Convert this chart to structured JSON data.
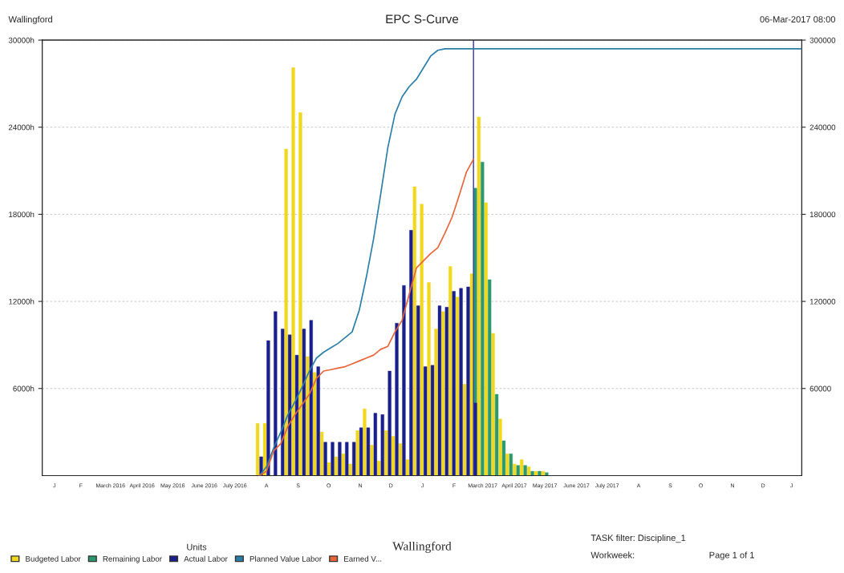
{
  "chart_data": {
    "type": "bar",
    "title": "EPC S-Curve",
    "subtitle": "Wallingford",
    "annotations": [
      "Wallingford",
      "06-Mar-2017 08:00",
      "TASK filter: Discipline_1",
      "Workweek:",
      "Page 1 of 1"
    ],
    "x": [
      "2016-08-08",
      "2016-08-15",
      "2016-08-22",
      "2016-08-29",
      "2016-09-05",
      "2016-09-12",
      "2016-09-19",
      "2016-09-26",
      "2016-10-03",
      "2016-10-10",
      "2016-10-17",
      "2016-10-24",
      "2016-10-31",
      "2016-11-07",
      "2016-11-14",
      "2016-11-21",
      "2016-11-28",
      "2016-12-05",
      "2016-12-12",
      "2016-12-19",
      "2016-12-26",
      "2017-01-02",
      "2017-01-09",
      "2017-01-16",
      "2017-01-23",
      "2017-01-30",
      "2017-02-06",
      "2017-02-13",
      "2017-02-20",
      "2017-02-27",
      "2017-03-06",
      "2017-03-13",
      "2017-03-20",
      "2017-03-27",
      "2017-04-03",
      "2017-04-10",
      "2017-04-17",
      "2017-04-24",
      "2017-05-01",
      "2017-05-08",
      "2017-05-15"
    ],
    "series": [
      {
        "name": "Budgeted Labor",
        "color": "#f2d81c",
        "values": [
          3600,
          3600,
          0,
          0,
          22500,
          28100,
          25000,
          8200,
          7100,
          3000,
          900,
          1300,
          1500,
          800,
          3100,
          4600,
          2100,
          1000,
          3100,
          2700,
          2200,
          1100,
          19900,
          18700,
          13300,
          10100,
          11300,
          14400,
          12300,
          6300,
          13900,
          24700,
          18800,
          9800,
          3900,
          1500,
          800,
          1100,
          600,
          300,
          300
        ]
      },
      {
        "name": "Remaining Labor",
        "color": "#2a9a6e",
        "values": [
          null,
          null,
          null,
          null,
          null,
          null,
          null,
          null,
          null,
          null,
          null,
          null,
          null,
          null,
          null,
          null,
          null,
          null,
          null,
          null,
          null,
          null,
          null,
          null,
          null,
          null,
          null,
          null,
          null,
          null,
          19800,
          21600,
          13500,
          5600,
          2400,
          1500,
          700,
          700,
          300,
          300,
          200
        ]
      },
      {
        "name": "Actual Labor",
        "color": "#1a1f8c",
        "values": [
          1300,
          9300,
          11300,
          10100,
          9700,
          8300,
          10100,
          10700,
          7500,
          2300,
          2300,
          2300,
          2300,
          2300,
          3300,
          3300,
          4300,
          4200,
          7200,
          10500,
          13100,
          16900,
          11700,
          7500,
          7600,
          11700,
          11600,
          12700,
          12900,
          13000,
          5000,
          null,
          null,
          null,
          null,
          null,
          null,
          null,
          null,
          null,
          null
        ]
      },
      {
        "name": "Planned Value Labor",
        "type": "line",
        "axis": "y2",
        "color": "#2a7ea6",
        "x": [
          "2016-08-08",
          "2016-08-15",
          "2016-08-22",
          "2016-08-29",
          "2016-09-05",
          "2016-09-12",
          "2016-09-19",
          "2016-09-26",
          "2016-10-03",
          "2016-10-10",
          "2016-10-17",
          "2016-10-24",
          "2016-10-31",
          "2016-11-07",
          "2016-11-14",
          "2016-11-21",
          "2016-11-28",
          "2016-12-05",
          "2016-12-12",
          "2016-12-19",
          "2016-12-26",
          "2017-01-02",
          "2017-01-09",
          "2017-01-16",
          "2017-01-23",
          "2017-01-30",
          "2017-02-06",
          "2018-01-22"
        ],
        "values": [
          0,
          6000,
          19000,
          30000,
          42000,
          51000,
          61000,
          72000,
          81000,
          85000,
          88000,
          91000,
          95000,
          99000,
          114000,
          137000,
          163000,
          194000,
          226000,
          249000,
          261000,
          268000,
          273000,
          281000,
          289000,
          293000,
          294000,
          294000
        ]
      },
      {
        "name": "Earned V...",
        "type": "line",
        "axis": "y2",
        "color": "#e8643a",
        "x": [
          "2016-08-08",
          "2016-08-15",
          "2016-08-22",
          "2016-08-29",
          "2016-09-05",
          "2016-09-12",
          "2016-09-19",
          "2016-09-26",
          "2016-10-03",
          "2016-10-10",
          "2016-10-17",
          "2016-10-24",
          "2016-10-31",
          "2016-11-07",
          "2016-11-14",
          "2016-11-21",
          "2016-11-28",
          "2016-12-05",
          "2016-12-12",
          "2016-12-19",
          "2016-12-26",
          "2017-01-02",
          "2017-01-09",
          "2017-01-16",
          "2017-01-23",
          "2017-01-30",
          "2017-02-06",
          "2017-02-13",
          "2017-02-20",
          "2017-02-27",
          "2017-03-06"
        ],
        "values": [
          0,
          3000,
          17000,
          22000,
          34000,
          42000,
          49000,
          56000,
          67000,
          72000,
          73000,
          74000,
          75000,
          77000,
          79000,
          81000,
          83000,
          87000,
          89000,
          99000,
          107000,
          125000,
          143000,
          148000,
          153000,
          157000,
          167000,
          178000,
          193000,
          209000,
          218000
        ]
      }
    ],
    "xlim": [
      "2016-01-08",
      "2018-01-22"
    ],
    "xticks": [
      {
        "value": "2016-01-20",
        "label": "J"
      },
      {
        "value": "2016-02-15",
        "label": "F"
      },
      {
        "value": "2016-03-15",
        "label": "March 2016"
      },
      {
        "value": "2016-04-15",
        "label": "April 2016"
      },
      {
        "value": "2016-05-15",
        "label": "May 2016"
      },
      {
        "value": "2016-06-15",
        "label": "June 2016"
      },
      {
        "value": "2016-07-15",
        "label": "July 2016"
      },
      {
        "value": "2016-08-15",
        "label": "A"
      },
      {
        "value": "2016-09-15",
        "label": "S"
      },
      {
        "value": "2016-10-15",
        "label": "O"
      },
      {
        "value": "2016-11-15",
        "label": "N"
      },
      {
        "value": "2016-12-15",
        "label": "D"
      },
      {
        "value": "2017-01-15",
        "label": "J"
      },
      {
        "value": "2017-02-15",
        "label": "F"
      },
      {
        "value": "2017-03-15",
        "label": "March 2017"
      },
      {
        "value": "2017-04-15",
        "label": "April 2017"
      },
      {
        "value": "2017-05-15",
        "label": "May 2017"
      },
      {
        "value": "2017-06-15",
        "label": "June 2017"
      },
      {
        "value": "2017-07-15",
        "label": "July 2017"
      },
      {
        "value": "2017-08-15",
        "label": "A"
      },
      {
        "value": "2017-09-15",
        "label": "S"
      },
      {
        "value": "2017-10-15",
        "label": "O"
      },
      {
        "value": "2017-11-15",
        "label": "N"
      },
      {
        "value": "2017-12-15",
        "label": "D"
      },
      {
        "value": "2018-01-12",
        "label": "J"
      }
    ],
    "ylim": [
      0,
      30000
    ],
    "yticks": [
      {
        "value": 6000,
        "label": "6000h"
      },
      {
        "value": 12000,
        "label": "12000h"
      },
      {
        "value": 18000,
        "label": "18000h"
      },
      {
        "value": 24000,
        "label": "24000h"
      },
      {
        "value": 30000,
        "label": "30000h"
      }
    ],
    "y2lim": [
      0,
      300000
    ],
    "y2ticks": [
      60000,
      120000,
      180000,
      240000,
      300000
    ],
    "grid": "y",
    "legend": "bottom",
    "legend_title": "Units",
    "ref_lines": [
      {
        "axis": "x",
        "value": "2017-03-06",
        "color": "#3333aa"
      }
    ]
  }
}
